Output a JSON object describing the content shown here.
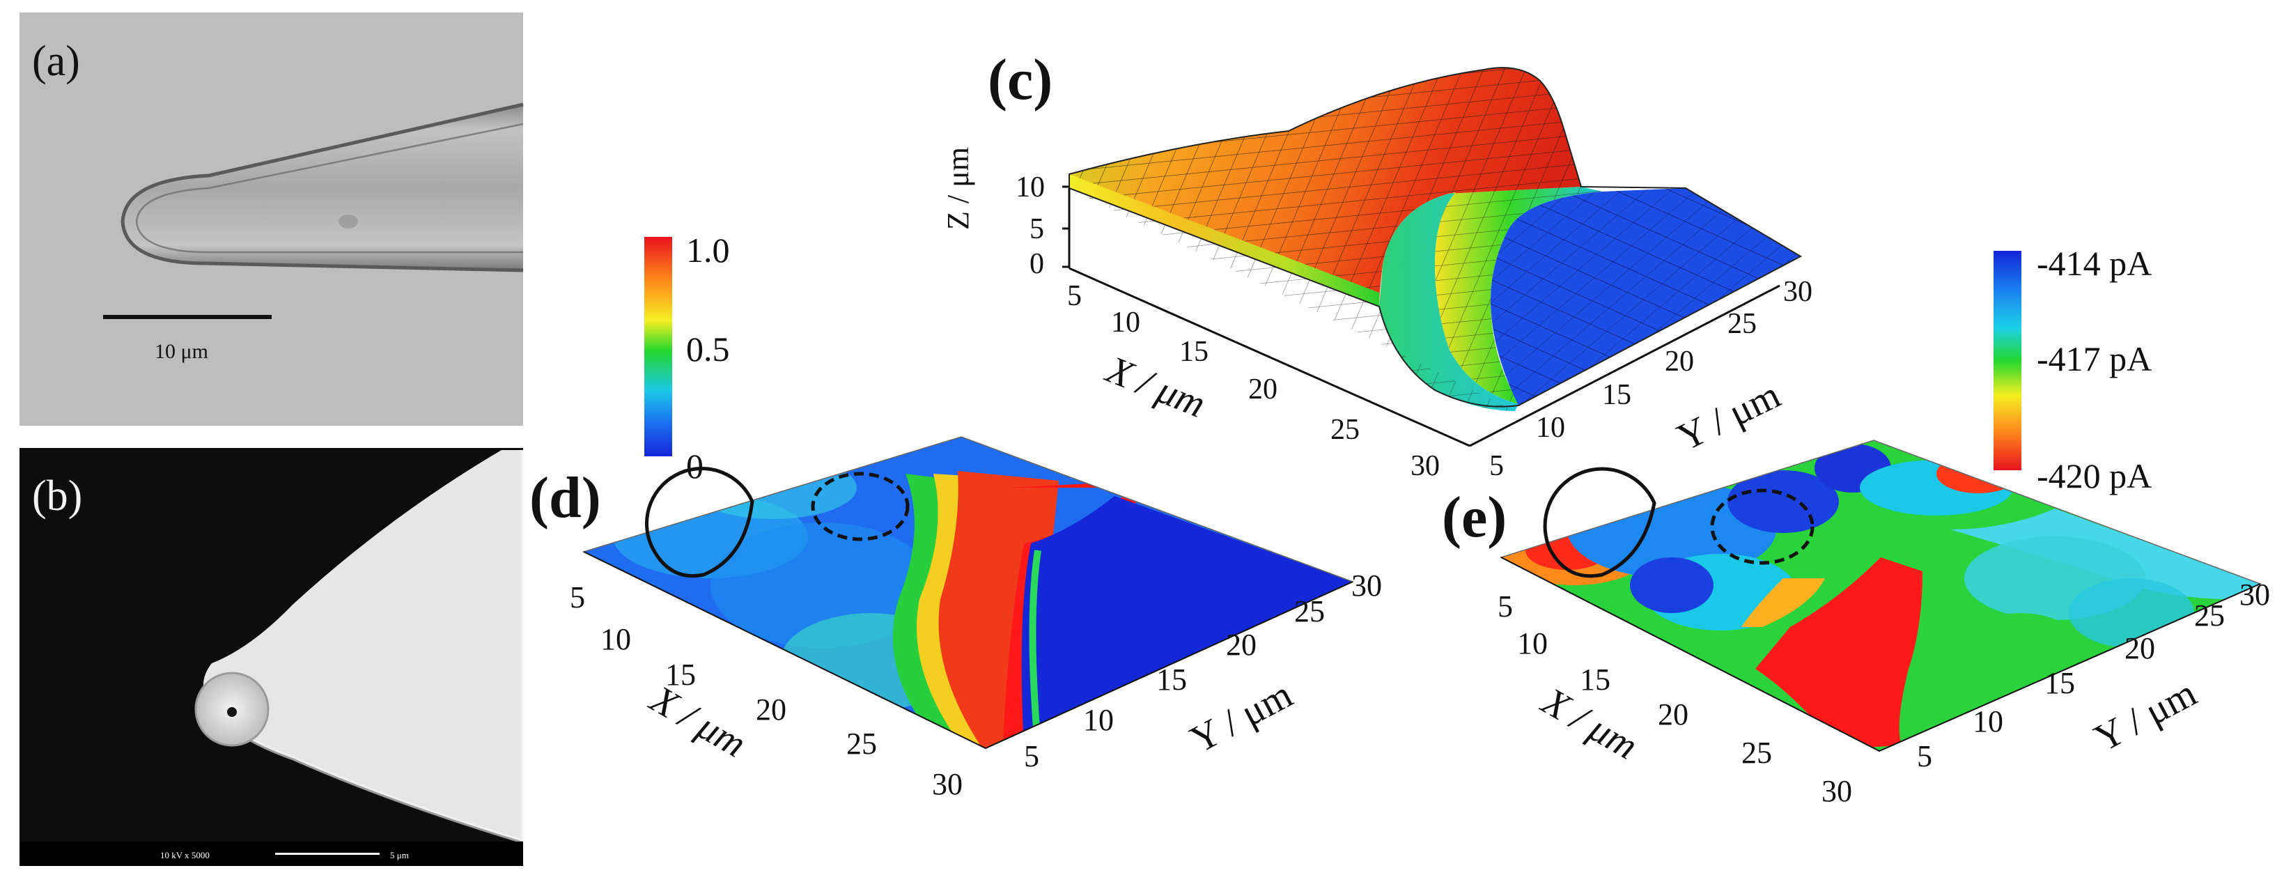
{
  "panels": {
    "a": {
      "letter": "(a)",
      "scalebar_label": "10 μm"
    },
    "b": {
      "letter": "(b)",
      "info_bar": "10 kV   x 5000",
      "scalebar_label": "5 μm"
    },
    "c": {
      "letter": "(c)",
      "z_axis_label": "Z / μm",
      "x_axis_label": "X / μm",
      "y_axis_label": "Y / μm",
      "z_ticks": [
        "0",
        "5",
        "10"
      ],
      "x_ticks": [
        "5",
        "10",
        "15",
        "20",
        "25",
        "30"
      ],
      "y_ticks": [
        "5",
        "10",
        "15",
        "20",
        "25",
        "30"
      ]
    },
    "d": {
      "letter": "(d)",
      "x_axis_label": "X / μm",
      "y_axis_label": "Y / μm",
      "x_ticks": [
        "5",
        "10",
        "15",
        "20",
        "25",
        "30"
      ],
      "y_ticks": [
        "5",
        "10",
        "15",
        "20",
        "25",
        "30"
      ]
    },
    "e": {
      "letter": "(e)",
      "x_axis_label": "X / μm",
      "y_axis_label": "Y / μm",
      "x_ticks": [
        "5",
        "10",
        "15",
        "20",
        "25",
        "30"
      ],
      "y_ticks": [
        "5",
        "10",
        "15",
        "20",
        "25",
        "30"
      ]
    }
  },
  "colorbar_left": {
    "ticks": [
      "1.0",
      "0.5",
      "0"
    ]
  },
  "colorbar_right": {
    "ticks": [
      "-414 pA",
      "-417 pA",
      "-420 pA"
    ]
  },
  "colors": {
    "high": "#ff1a1a",
    "mid": "#22dd22",
    "low": "#1030e0",
    "jet_orange": "#ff8c1a",
    "jet_cyan": "#22ccee"
  }
}
